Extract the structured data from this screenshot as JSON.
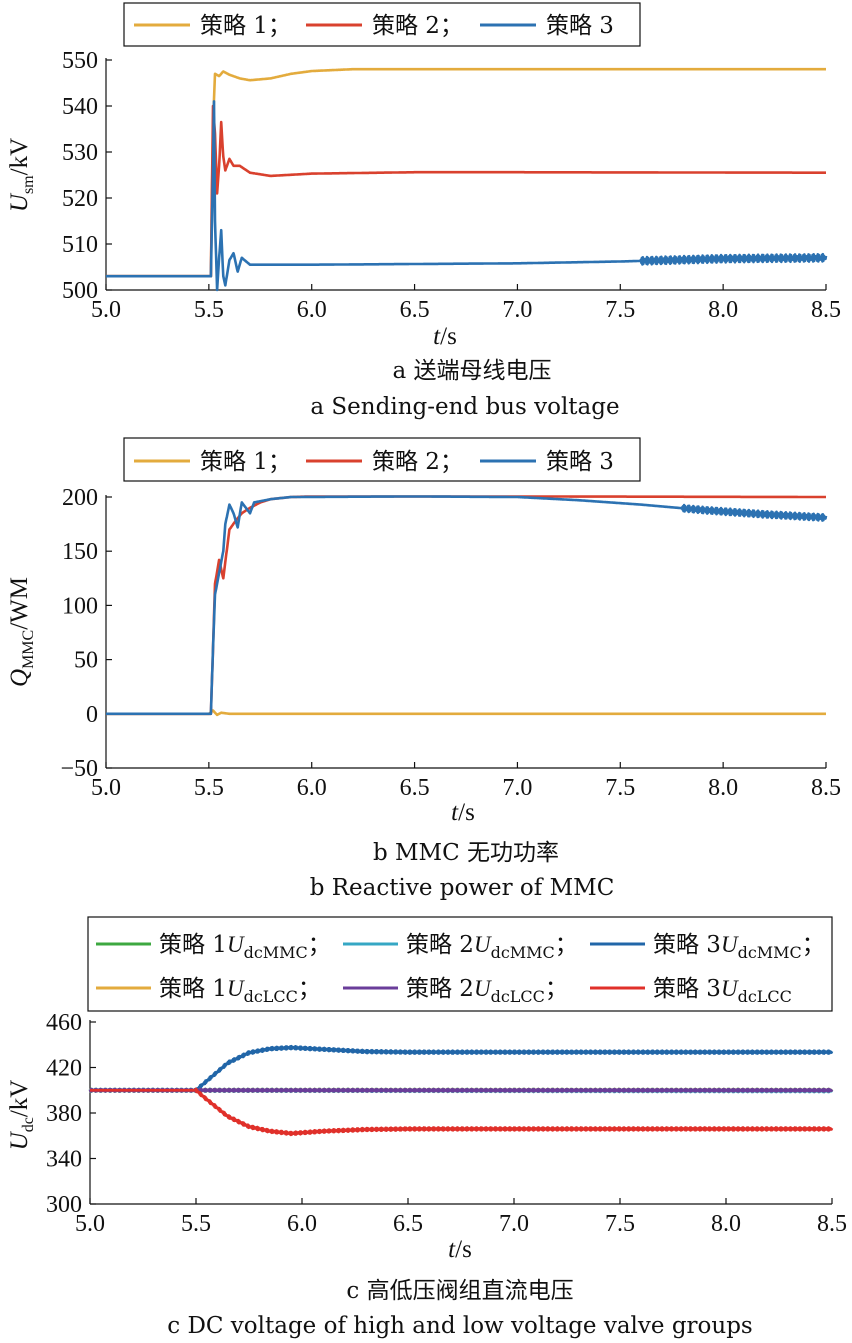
{
  "chart_data": [
    {
      "type": "line",
      "panel": "a",
      "xlabel": "t/s",
      "ylabel_main": "U",
      "ylabel_sub": "sm",
      "ylabel_unit": "/kV",
      "xlim": [
        5.0,
        8.5
      ],
      "ylim": [
        500,
        550
      ],
      "xticks": [
        "5.0",
        "5.5",
        "6.0",
        "6.5",
        "7.0",
        "7.5",
        "8.0",
        "8.5"
      ],
      "yticks": [
        "500",
        "510",
        "520",
        "530",
        "540",
        "550"
      ],
      "legend_position": "top",
      "series": [
        {
          "name": "策略 1；",
          "color": "#E3AB3D",
          "points": [
            [
              5.0,
              503
            ],
            [
              5.51,
              503
            ],
            [
              5.52,
              536
            ],
            [
              5.53,
              547
            ],
            [
              5.55,
              546.5
            ],
            [
              5.57,
              547.5
            ],
            [
              5.6,
              546.8
            ],
            [
              5.65,
              546
            ],
            [
              5.7,
              545.6
            ],
            [
              5.8,
              546
            ],
            [
              5.9,
              547
            ],
            [
              6.0,
              547.6
            ],
            [
              6.2,
              548
            ],
            [
              7.0,
              548
            ],
            [
              8.5,
              548
            ]
          ]
        },
        {
          "name": "策略 2；",
          "color": "#D9412E",
          "points": [
            [
              5.0,
              503
            ],
            [
              5.51,
              503
            ],
            [
              5.52,
              540
            ],
            [
              5.53,
              534
            ],
            [
              5.54,
              521
            ],
            [
              5.55,
              527
            ],
            [
              5.56,
              536.5
            ],
            [
              5.57,
              529
            ],
            [
              5.58,
              526
            ],
            [
              5.6,
              528.5
            ],
            [
              5.62,
              527
            ],
            [
              5.65,
              527
            ],
            [
              5.7,
              525.5
            ],
            [
              5.8,
              524.8
            ],
            [
              6.0,
              525.3
            ],
            [
              6.5,
              525.6
            ],
            [
              7.0,
              525.6
            ],
            [
              8.5,
              525.5
            ]
          ]
        },
        {
          "name": "策略 3",
          "color": "#2C72B2",
          "points": [
            [
              5.0,
              503
            ],
            [
              5.51,
              503
            ],
            [
              5.52,
              526
            ],
            [
              5.525,
              541
            ],
            [
              5.53,
              515
            ],
            [
              5.54,
              500
            ],
            [
              5.55,
              507
            ],
            [
              5.56,
              513
            ],
            [
              5.57,
              503
            ],
            [
              5.58,
              501
            ],
            [
              5.6,
              506.5
            ],
            [
              5.62,
              508
            ],
            [
              5.64,
              504
            ],
            [
              5.66,
              507
            ],
            [
              5.7,
              505.5
            ],
            [
              5.8,
              505.5
            ],
            [
              6.0,
              505.5
            ],
            [
              7.0,
              505.8
            ],
            [
              7.5,
              506.2
            ],
            [
              8.0,
              506.8
            ],
            [
              8.5,
              507
            ]
          ],
          "noise_after": 7.6,
          "noise_amp": 0.8
        }
      ]
    },
    {
      "type": "line",
      "panel": "b",
      "xlabel": "t/s",
      "ylabel_main": "Q",
      "ylabel_sub": "MMC",
      "ylabel_unit": "/WM",
      "xlim": [
        5.0,
        8.5
      ],
      "ylim": [
        -50,
        200
      ],
      "xticks": [
        "5.0",
        "5.5",
        "6.0",
        "6.5",
        "7.0",
        "7.5",
        "8.0",
        "8.5"
      ],
      "yticks": [
        "−50",
        "0",
        "50",
        "100",
        "150",
        "200"
      ],
      "legend_position": "top",
      "series": [
        {
          "name": "策略 1；",
          "color": "#E3AB3D",
          "points": [
            [
              5.0,
              0
            ],
            [
              5.5,
              0
            ],
            [
              5.52,
              3
            ],
            [
              5.54,
              -1
            ],
            [
              5.56,
              1
            ],
            [
              5.6,
              0
            ],
            [
              8.5,
              0
            ]
          ]
        },
        {
          "name": "策略 2；",
          "color": "#D9412E",
          "points": [
            [
              5.0,
              0
            ],
            [
              5.51,
              0
            ],
            [
              5.52,
              60
            ],
            [
              5.53,
              120
            ],
            [
              5.55,
              142
            ],
            [
              5.57,
              125
            ],
            [
              5.6,
              170
            ],
            [
              5.63,
              178
            ],
            [
              5.66,
              185
            ],
            [
              5.7,
              190
            ],
            [
              5.75,
              195
            ],
            [
              5.8,
              198
            ],
            [
              5.9,
              200
            ],
            [
              6.0,
              200.5
            ],
            [
              7.0,
              200.5
            ],
            [
              8.5,
              200
            ]
          ]
        },
        {
          "name": "策略 3",
          "color": "#2C72B2",
          "points": [
            [
              5.0,
              0
            ],
            [
              5.51,
              0
            ],
            [
              5.52,
              60
            ],
            [
              5.53,
              110
            ],
            [
              5.55,
              130
            ],
            [
              5.57,
              150
            ],
            [
              5.58,
              175
            ],
            [
              5.6,
              193
            ],
            [
              5.62,
              185
            ],
            [
              5.64,
              172
            ],
            [
              5.66,
              195
            ],
            [
              5.68,
              190
            ],
            [
              5.7,
              185
            ],
            [
              5.72,
              195
            ],
            [
              5.8,
              198
            ],
            [
              5.9,
              200
            ],
            [
              6.5,
              200.5
            ],
            [
              7.0,
              200
            ],
            [
              7.3,
              197
            ],
            [
              7.6,
              193
            ],
            [
              7.9,
              188
            ],
            [
              8.2,
              184
            ],
            [
              8.5,
              181
            ]
          ],
          "noise_after": 7.8,
          "noise_amp": 3
        }
      ]
    },
    {
      "type": "line",
      "panel": "c",
      "xlabel": "t/s",
      "ylabel_main": "U",
      "ylabel_sub": "dc",
      "ylabel_unit": "/kV",
      "xlim": [
        5.0,
        8.5
      ],
      "ylim": [
        300,
        460
      ],
      "xticks": [
        "5.0",
        "5.5",
        "6.0",
        "6.5",
        "7.0",
        "7.5",
        "8.0",
        "8.5"
      ],
      "yticks": [
        "300",
        "340",
        "380",
        "420",
        "460"
      ],
      "legend_position": "top",
      "series": [
        {
          "name_main": "策略 1",
          "name_var": "U",
          "name_sub": "dcMMC",
          "name_tail": "；",
          "color": "#3DA840",
          "points": [
            [
              5.0,
              400
            ],
            [
              8.5,
              400
            ]
          ],
          "noise_after": 5.0,
          "noise_amp": 1.2
        },
        {
          "name_main": "策略 2",
          "name_var": "U",
          "name_sub": "dcMMC",
          "name_tail": "；",
          "color": "#35A7C4",
          "points": [
            [
              5.0,
              400
            ],
            [
              8.5,
              399.5
            ]
          ],
          "noise_after": 5.0,
          "noise_amp": 1.2
        },
        {
          "name_main": "策略 3",
          "name_var": "U",
          "name_sub": "dcMMC",
          "name_tail": "；",
          "color": "#2166A8",
          "points": [
            [
              5.0,
              400
            ],
            [
              5.5,
              400
            ],
            [
              5.55,
              408
            ],
            [
              5.65,
              424
            ],
            [
              5.75,
              433
            ],
            [
              5.85,
              436.5
            ],
            [
              5.95,
              437.5
            ],
            [
              6.1,
              436
            ],
            [
              6.3,
              434
            ],
            [
              6.5,
              433.5
            ],
            [
              7.0,
              433.5
            ],
            [
              8.5,
              433.5
            ]
          ],
          "noise_after": 5.5,
          "noise_amp": 1.3
        },
        {
          "name_main": "策略 1",
          "name_var": "U",
          "name_sub": "dcLCC",
          "name_tail": "；",
          "color": "#E3AB3D",
          "points": [
            [
              5.0,
              400
            ],
            [
              8.5,
              400
            ]
          ],
          "noise_after": 5.0,
          "noise_amp": 1.0
        },
        {
          "name_main": "策略 2",
          "name_var": "U",
          "name_sub": "dcLCC",
          "name_tail": "；",
          "color": "#6A3D9A",
          "points": [
            [
              5.0,
              400
            ],
            [
              8.5,
              400
            ]
          ],
          "noise_after": 5.0,
          "noise_amp": 1.0
        },
        {
          "name_main": "策略 3",
          "name_var": "U",
          "name_sub": "dcLCC",
          "name_tail": "",
          "color": "#E0302A",
          "points": [
            [
              5.0,
              400
            ],
            [
              5.5,
              400
            ],
            [
              5.55,
              392
            ],
            [
              5.65,
              377
            ],
            [
              5.75,
              368
            ],
            [
              5.85,
              364
            ],
            [
              5.95,
              362
            ],
            [
              6.1,
              364
            ],
            [
              6.3,
              365.5
            ],
            [
              6.5,
              366
            ],
            [
              7.0,
              366
            ],
            [
              8.5,
              366
            ]
          ],
          "noise_after": 5.5,
          "noise_amp": 1.3
        }
      ]
    }
  ],
  "captions": {
    "a_cn": "a  送端母线电压",
    "a_en": "a  Sending-end bus voltage",
    "b_cn": "b  MMC 无功功率",
    "b_en": "b  Reactive power of MMC",
    "c_cn": "c  高低压阀组直流电压",
    "c_en": "c  DC voltage of high and low voltage valve groups"
  },
  "legend_ab": [
    "策略 1；",
    "策略 2；",
    "策略 3"
  ]
}
